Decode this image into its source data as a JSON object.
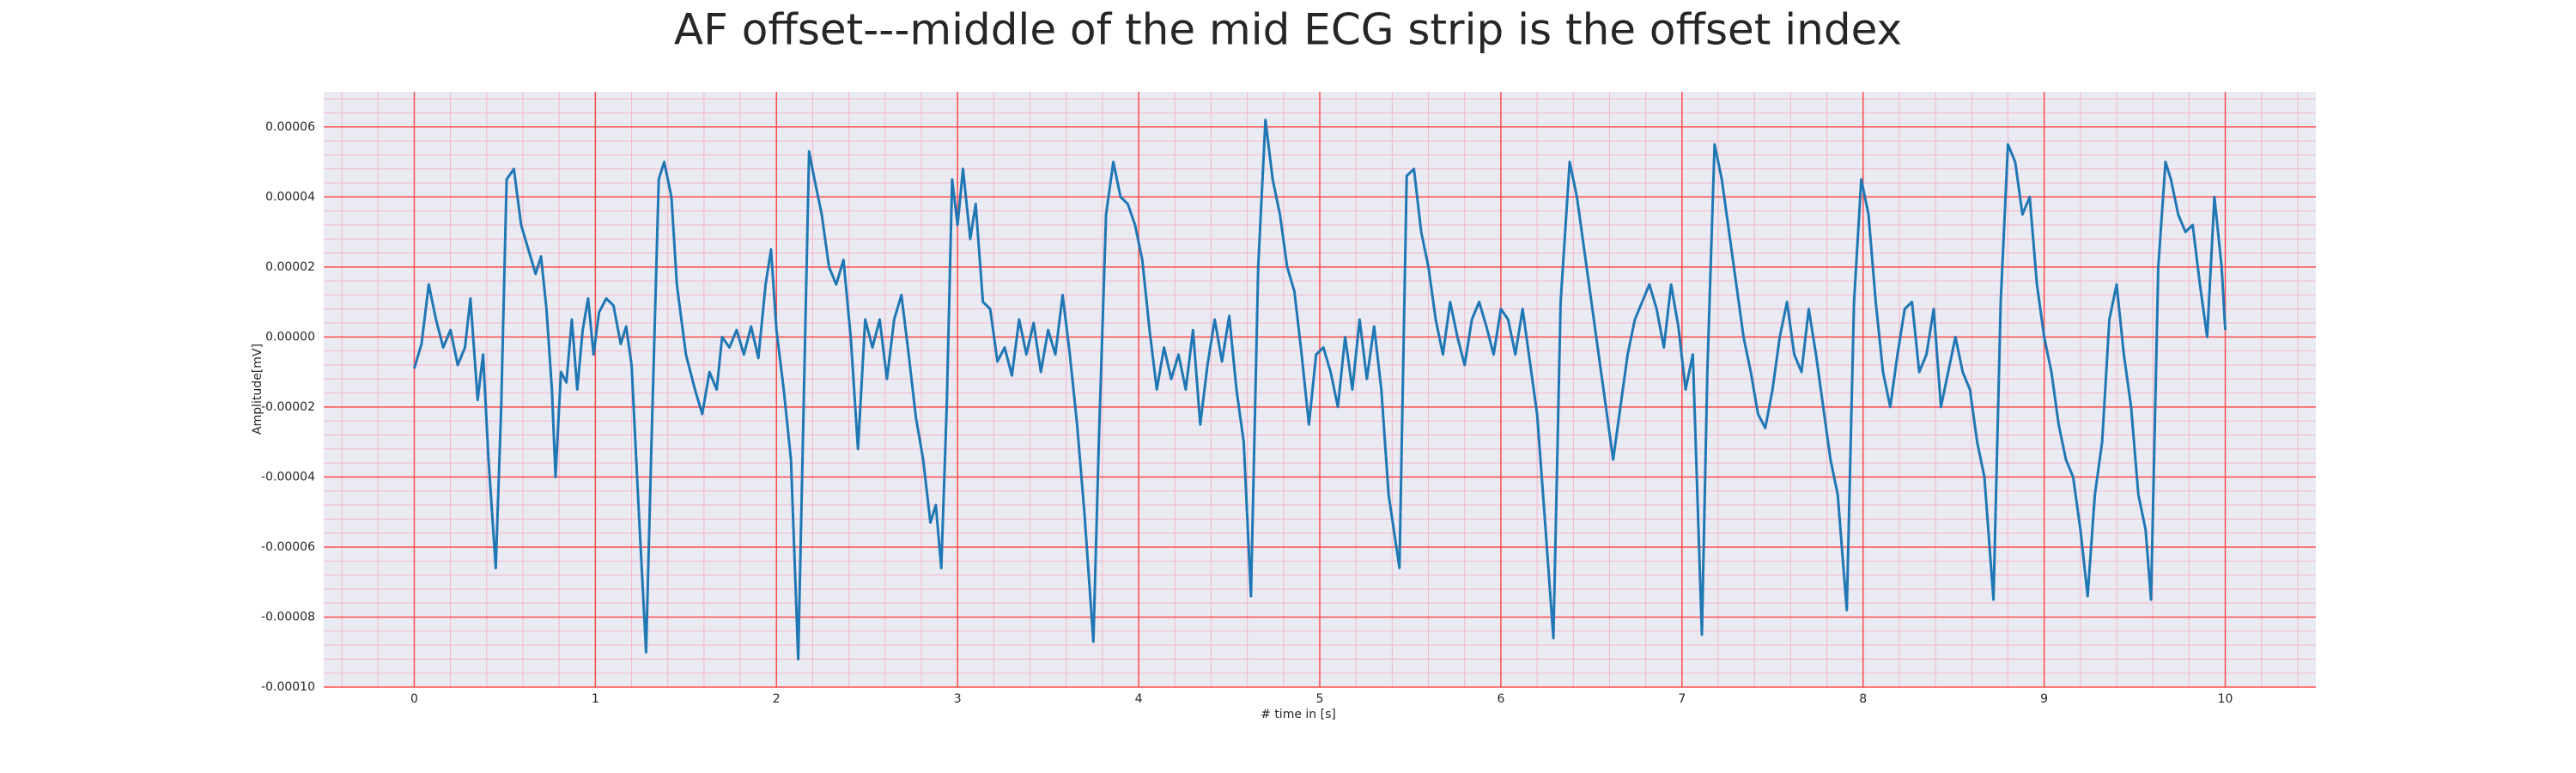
{
  "chart_data": {
    "type": "line",
    "title": "AF offset---middle of the mid ECG strip is the offset index",
    "xlabel": "# time in [s]",
    "ylabel": "Amplitude[mV]",
    "color": "#1f77b4",
    "grid_color": "#ff4d4d",
    "minor_grid": true,
    "xlim": [
      -0.5,
      10.5
    ],
    "ylim": [
      -0.0001,
      7e-05
    ],
    "xticks": [
      0,
      1,
      2,
      3,
      4,
      5,
      6,
      7,
      8,
      9,
      10
    ],
    "yticks": [
      {
        "value": -0.0001,
        "label": "-0.00010"
      },
      {
        "value": -8e-05,
        "label": "-0.00008"
      },
      {
        "value": -6e-05,
        "label": "-0.00006"
      },
      {
        "value": -4e-05,
        "label": "-0.00004"
      },
      {
        "value": -2e-05,
        "label": "-0.00002"
      },
      {
        "value": 0,
        "label": "0.00000"
      },
      {
        "value": 2e-05,
        "label": "0.00002"
      },
      {
        "value": 4e-05,
        "label": "0.00004"
      },
      {
        "value": 6e-05,
        "label": "0.00006"
      }
    ],
    "x": [
      0,
      0.04,
      0.08,
      0.12,
      0.16,
      0.2,
      0.24,
      0.28,
      0.31,
      0.35,
      0.38,
      0.41,
      0.45,
      0.48,
      0.51,
      0.55,
      0.59,
      0.63,
      0.67,
      0.7,
      0.73,
      0.76,
      0.78,
      0.81,
      0.84,
      0.87,
      0.9,
      0.93,
      0.96,
      0.99,
      1.02,
      1.06,
      1.1,
      1.14,
      1.17,
      1.2,
      1.24,
      1.28,
      1.31,
      1.35,
      1.38,
      1.42,
      1.45,
      1.5,
      1.55,
      1.59,
      1.63,
      1.67,
      1.7,
      1.74,
      1.78,
      1.82,
      1.86,
      1.9,
      1.94,
      1.97,
      2.0,
      2.04,
      2.08,
      2.12,
      2.15,
      2.18,
      2.21,
      2.25,
      2.29,
      2.33,
      2.37,
      2.41,
      2.45,
      2.49,
      2.53,
      2.57,
      2.61,
      2.65,
      2.69,
      2.73,
      2.77,
      2.81,
      2.85,
      2.88,
      2.91,
      2.94,
      2.97,
      3.0,
      3.03,
      3.07,
      3.1,
      3.14,
      3.18,
      3.22,
      3.26,
      3.3,
      3.34,
      3.38,
      3.42,
      3.46,
      3.5,
      3.54,
      3.58,
      3.62,
      3.66,
      3.7,
      3.75,
      3.78,
      3.82,
      3.86,
      3.9,
      3.94,
      3.98,
      4.02,
      4.06,
      4.1,
      4.14,
      4.18,
      4.22,
      4.26,
      4.3,
      4.34,
      4.38,
      4.42,
      4.46,
      4.5,
      4.54,
      4.58,
      4.62,
      4.66,
      4.7,
      4.74,
      4.78,
      4.82,
      4.86,
      4.9,
      4.94,
      4.98,
      5.02,
      5.06,
      5.1,
      5.14,
      5.18,
      5.22,
      5.26,
      5.3,
      5.34,
      5.38,
      5.44,
      5.48,
      5.52,
      5.56,
      5.6,
      5.64,
      5.68,
      5.72,
      5.76,
      5.8,
      5.84,
      5.88,
      5.92,
      5.96,
      6.0,
      6.04,
      6.08,
      6.12,
      6.16,
      6.2,
      6.24,
      6.29,
      6.33,
      6.38,
      6.42,
      6.46,
      6.5,
      6.54,
      6.58,
      6.62,
      6.66,
      6.7,
      6.74,
      6.78,
      6.82,
      6.86,
      6.9,
      6.94,
      6.98,
      7.02,
      7.06,
      7.11,
      7.14,
      7.18,
      7.22,
      7.26,
      7.3,
      7.34,
      7.38,
      7.42,
      7.46,
      7.5,
      7.54,
      7.58,
      7.62,
      7.66,
      7.7,
      7.74,
      7.78,
      7.82,
      7.86,
      7.91,
      7.95,
      7.99,
      8.03,
      8.07,
      8.11,
      8.15,
      8.19,
      8.23,
      8.27,
      8.31,
      8.35,
      8.39,
      8.43,
      8.47,
      8.51,
      8.55,
      8.59,
      8.63,
      8.67,
      8.72,
      8.76,
      8.8,
      8.84,
      8.88,
      8.92,
      8.96,
      9.0,
      9.04,
      9.08,
      9.12,
      9.16,
      9.2,
      9.24,
      9.28,
      9.32,
      9.36,
      9.4,
      9.44,
      9.48,
      9.52,
      9.56,
      9.59,
      9.63,
      9.67,
      9.7,
      9.74,
      9.78,
      9.82,
      9.86,
      9.9,
      9.94,
      9.98,
      10.0
    ],
    "values": [
      -9e-06,
      -2e-06,
      1.5e-05,
      5e-06,
      -3e-06,
      2e-06,
      -8e-06,
      -3e-06,
      1.1e-05,
      -1.8e-05,
      -5e-06,
      -3.5e-05,
      -6.6e-05,
      -2e-05,
      4.5e-05,
      4.8e-05,
      3.2e-05,
      2.5e-05,
      1.8e-05,
      2.3e-05,
      8e-06,
      -1.5e-05,
      -4e-05,
      -1e-05,
      -1.3e-05,
      5e-06,
      -1.5e-05,
      2e-06,
      1.1e-05,
      -5e-06,
      7e-06,
      1.1e-05,
      9e-06,
      -2e-06,
      3e-06,
      -8e-06,
      -5e-05,
      -9e-05,
      -3e-05,
      4.5e-05,
      5e-05,
      4e-05,
      1.5e-05,
      -5e-06,
      -1.5e-05,
      -2.2e-05,
      -1e-05,
      -1.5e-05,
      0,
      -3e-06,
      2e-06,
      -5e-06,
      3e-06,
      -6e-06,
      1.5e-05,
      2.5e-05,
      2e-06,
      -1.5e-05,
      -3.5e-05,
      -9.2e-05,
      -2e-05,
      5.3e-05,
      4.5e-05,
      3.5e-05,
      2e-05,
      1.5e-05,
      2.2e-05,
      0,
      -3.2e-05,
      5e-06,
      -3e-06,
      5e-06,
      -1.2e-05,
      5e-06,
      1.2e-05,
      -5e-06,
      -2.3e-05,
      -3.5e-05,
      -5.3e-05,
      -4.8e-05,
      -6.6e-05,
      -2e-05,
      4.5e-05,
      3.2e-05,
      4.8e-05,
      2.8e-05,
      3.8e-05,
      1e-05,
      8e-06,
      -7e-06,
      -3e-06,
      -1.1e-05,
      5e-06,
      -5e-06,
      4e-06,
      -1e-05,
      2e-06,
      -5e-06,
      1.2e-05,
      -5e-06,
      -2.5e-05,
      -5e-05,
      -8.7e-05,
      -3e-05,
      3.5e-05,
      5e-05,
      4e-05,
      3.8e-05,
      3.2e-05,
      2.2e-05,
      2e-06,
      -1.5e-05,
      -3e-06,
      -1.2e-05,
      -5e-06,
      -1.5e-05,
      2e-06,
      -2.5e-05,
      -8e-06,
      5e-06,
      -7e-06,
      6e-06,
      -1.5e-05,
      -3e-05,
      -7.4e-05,
      2e-05,
      6.2e-05,
      4.5e-05,
      3.5e-05,
      2e-05,
      1.3e-05,
      -5e-06,
      -2.5e-05,
      -5e-06,
      -3e-06,
      -1e-05,
      -2e-05,
      0,
      -1.5e-05,
      5e-06,
      -1.2e-05,
      3e-06,
      -1.5e-05,
      -4.5e-05,
      -6.6e-05,
      4.6e-05,
      4.8e-05,
      3e-05,
      2e-05,
      5e-06,
      -5e-06,
      1e-05,
      0,
      -8e-06,
      5e-06,
      1e-05,
      3e-06,
      -5e-06,
      8e-06,
      5e-06,
      -5e-06,
      8e-06,
      -7e-06,
      -2.2e-05,
      -5e-05,
      -8.6e-05,
      1e-05,
      5e-05,
      4e-05,
      2.5e-05,
      1e-05,
      -5e-06,
      -2e-05,
      -3.5e-05,
      -2e-05,
      -5e-06,
      5e-06,
      1e-05,
      1.5e-05,
      8e-06,
      -3e-06,
      1.5e-05,
      3e-06,
      -1.5e-05,
      -5e-06,
      -8.5e-05,
      -1e-05,
      5.5e-05,
      4.5e-05,
      3e-05,
      1.5e-05,
      0,
      -1e-05,
      -2.2e-05,
      -2.6e-05,
      -1.5e-05,
      0,
      1e-05,
      -5e-06,
      -1e-05,
      8e-06,
      -5e-06,
      -2e-05,
      -3.5e-05,
      -4.5e-05,
      -7.8e-05,
      1e-05,
      4.5e-05,
      3.5e-05,
      1e-05,
      -1e-05,
      -2e-05,
      -5e-06,
      8e-06,
      1e-05,
      -1e-05,
      -5e-06,
      8e-06,
      -2e-05,
      -1e-05,
      0,
      -1e-05,
      -1.5e-05,
      -3e-05,
      -4e-05,
      -7.5e-05,
      1e-05,
      5.5e-05,
      5e-05,
      3.5e-05,
      4e-05,
      1.5e-05,
      0,
      -1e-05,
      -2.5e-05,
      -3.5e-05,
      -4e-05,
      -5.5e-05,
      -7.4e-05,
      -4.5e-05,
      -3e-05,
      5e-06,
      1.5e-05,
      -5e-06,
      -2e-05,
      -4.5e-05,
      -5.5e-05,
      -7.5e-05,
      2e-05,
      5e-05,
      4.5e-05,
      3.5e-05,
      3e-05,
      3.2e-05,
      1.5e-05,
      0,
      4e-05,
      2e-05,
      2e-06
    ]
  }
}
